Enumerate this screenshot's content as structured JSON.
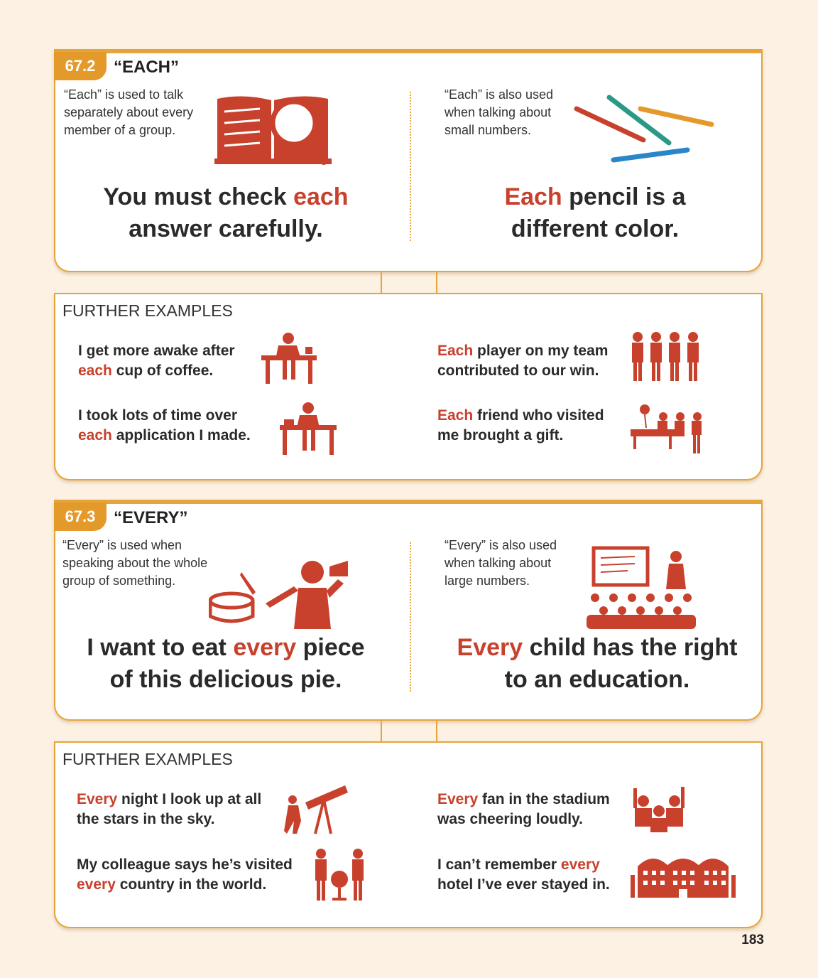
{
  "colors": {
    "accent": "#e39a2b",
    "highlight": "#c8412d",
    "background": "#fcf1e2"
  },
  "section1": {
    "number": "67.2",
    "title": "“EACH”",
    "left": {
      "intro": [
        "“Each” is used to talk",
        "separately about every",
        "member of a group."
      ],
      "line1a": "You must check ",
      "line1hl": "each",
      "line2": "answer carefully.",
      "icon": "book-magnifier-icon"
    },
    "right": {
      "intro": [
        "“Each” is also used",
        "when talking about",
        "small numbers."
      ],
      "line1hl": "Each",
      "line1b": " pencil is a",
      "line2": "different color.",
      "icon": "pencils-icon"
    }
  },
  "further1": {
    "label": "FURTHER EXAMPLES",
    "ex1": {
      "a": "I get more awake after",
      "hl": "each",
      "b": " cup of coffee.",
      "icon": "coffee-desk-icon"
    },
    "ex2": {
      "a": "I took lots of time over",
      "hl": "each",
      "b": " application I made.",
      "icon": "person-desk-icon"
    },
    "ex3": {
      "hl": "Each",
      "a": " player on my team",
      "b": "contributed to our win.",
      "icon": "team-players-icon"
    },
    "ex4": {
      "hl": "Each",
      "a": " friend who visited",
      "b": "me brought a gift.",
      "icon": "hospital-visitors-icon"
    }
  },
  "section2": {
    "number": "67.3",
    "title": "“EVERY”",
    "left": {
      "intro": [
        "“Every” is used when",
        "speaking about the whole",
        "group of something."
      ],
      "line1a": "I want to eat ",
      "line1hl": "every",
      "line1b": " piece",
      "line2": "of this delicious pie.",
      "icon": "pie-person-icon"
    },
    "right": {
      "intro": [
        "“Every” is also used",
        "when talking about",
        "large numbers."
      ],
      "line1hl": "Every",
      "line1b": " child has the right",
      "line2": "to an education.",
      "icon": "classroom-icon"
    }
  },
  "further2": {
    "label": "FURTHER EXAMPLES",
    "ex1": {
      "hl": "Every",
      "a": " night I look up at all",
      "b": "the stars in the sky.",
      "icon": "telescope-icon"
    },
    "ex2": {
      "a": "My colleague says he’s visited",
      "hl": "every",
      "b": " country in the world.",
      "icon": "globe-people-icon"
    },
    "ex3": {
      "hl": "Every",
      "a": " fan in the stadium",
      "b": "was cheering loudly.",
      "icon": "cheering-fans-icon"
    },
    "ex4": {
      "a": "I can’t remember ",
      "hl": "every",
      "b": "hotel I’ve ever stayed in.",
      "icon": "hotel-icon"
    }
  },
  "page_number": "183"
}
